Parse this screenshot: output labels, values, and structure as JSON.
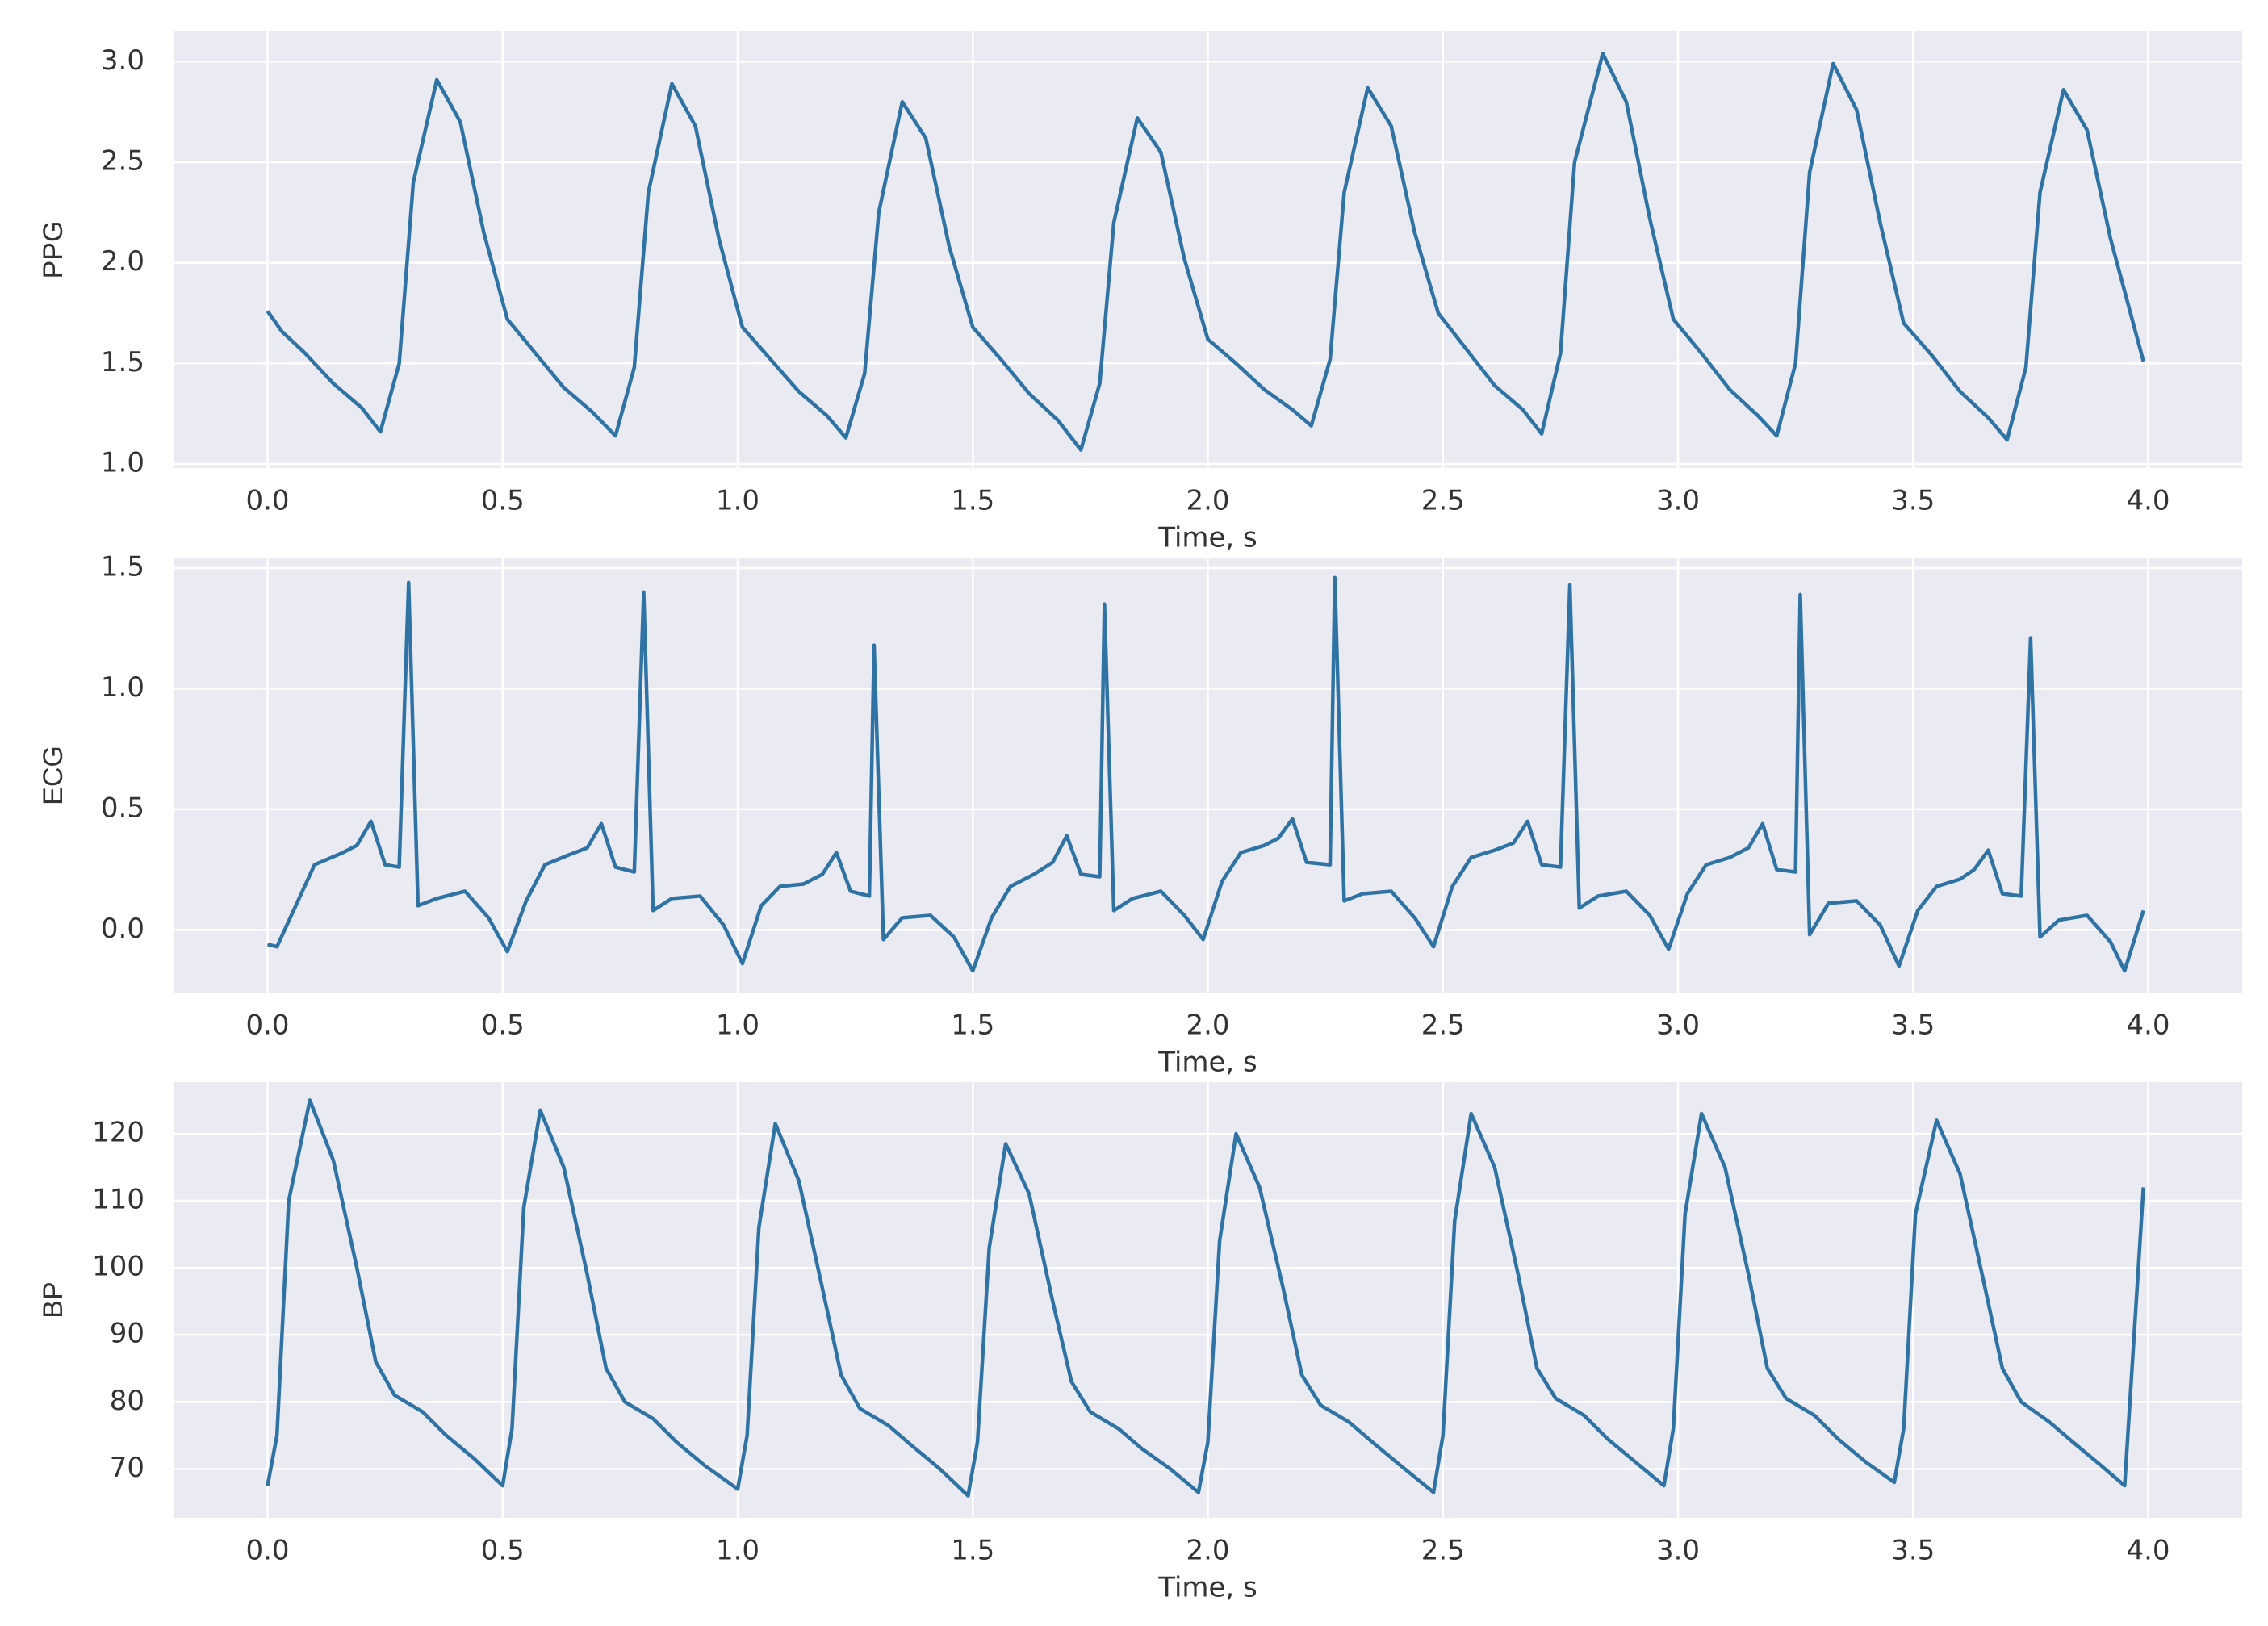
{
  "chart_data": [
    {
      "type": "line",
      "ylabel": "PPG",
      "xlabel": "Time, s",
      "color": "#2f73a5",
      "grid": true,
      "xlim": [
        -0.2,
        4.2
      ],
      "ylim": [
        0.98,
        3.15
      ],
      "xticks": [
        {
          "value": 0,
          "label": "0.0"
        },
        0.5,
        {
          "value": 1,
          "label": "1.0"
        },
        1.5,
        {
          "value": 2,
          "label": "2.0"
        },
        2.5,
        {
          "value": 3,
          "label": "3.0"
        },
        3.5,
        {
          "value": 4,
          "label": "4.0"
        }
      ],
      "yticks": [
        {
          "value": 1,
          "label": "1.0"
        },
        1.5,
        {
          "value": 2,
          "label": "2.0"
        },
        2.5,
        {
          "value": 3,
          "label": "3.0"
        }
      ],
      "x": [
        0.0,
        0.03,
        0.08,
        0.14,
        0.2,
        0.24,
        0.28,
        0.31,
        0.36,
        0.41,
        0.46,
        0.51,
        0.57,
        0.63,
        0.69,
        0.74,
        0.78,
        0.81,
        0.86,
        0.91,
        0.96,
        1.01,
        1.07,
        1.13,
        1.19,
        1.23,
        1.27,
        1.3,
        1.35,
        1.4,
        1.45,
        1.5,
        1.56,
        1.62,
        1.68,
        1.73,
        1.77,
        1.8,
        1.85,
        1.9,
        1.95,
        2.0,
        2.06,
        2.12,
        2.18,
        2.22,
        2.26,
        2.29,
        2.34,
        2.39,
        2.44,
        2.49,
        2.55,
        2.61,
        2.67,
        2.71,
        2.75,
        2.78,
        2.84,
        2.89,
        2.94,
        2.99,
        3.05,
        3.11,
        3.17,
        3.21,
        3.25,
        3.28,
        3.33,
        3.38,
        3.43,
        3.48,
        3.54,
        3.6,
        3.66,
        3.7,
        3.74,
        3.77,
        3.82,
        3.87,
        3.92,
        3.99
      ],
      "values": [
        1.76,
        1.66,
        1.55,
        1.4,
        1.28,
        1.16,
        1.5,
        2.4,
        2.91,
        2.7,
        2.15,
        1.72,
        1.55,
        1.38,
        1.26,
        1.14,
        1.48,
        2.35,
        2.89,
        2.68,
        2.12,
        1.68,
        1.52,
        1.36,
        1.24,
        1.13,
        1.45,
        2.25,
        2.8,
        2.62,
        2.08,
        1.68,
        1.52,
        1.35,
        1.22,
        1.07,
        1.4,
        2.2,
        2.72,
        2.55,
        2.02,
        1.62,
        1.5,
        1.37,
        1.27,
        1.19,
        1.52,
        2.35,
        2.87,
        2.68,
        2.15,
        1.75,
        1.57,
        1.39,
        1.27,
        1.15,
        1.55,
        2.5,
        3.04,
        2.8,
        2.22,
        1.72,
        1.55,
        1.37,
        1.24,
        1.14,
        1.5,
        2.45,
        2.99,
        2.76,
        2.2,
        1.7,
        1.54,
        1.36,
        1.23,
        1.12,
        1.48,
        2.35,
        2.86,
        2.66,
        2.12,
        1.51
      ]
    },
    {
      "type": "line",
      "ylabel": "ECG",
      "xlabel": "Time, s",
      "color": "#2f73a5",
      "grid": true,
      "xlim": [
        -0.2,
        4.2
      ],
      "ylim": [
        -0.26,
        1.54
      ],
      "xticks": [
        {
          "value": 0,
          "label": "0.0"
        },
        0.5,
        {
          "value": 1,
          "label": "1.0"
        },
        1.5,
        {
          "value": 2,
          "label": "2.0"
        },
        2.5,
        {
          "value": 3,
          "label": "3.0"
        },
        3.5,
        {
          "value": 4,
          "label": "4.0"
        }
      ],
      "yticks": [
        {
          "value": 0,
          "label": "0.0"
        },
        0.5,
        {
          "value": 1,
          "label": "1.0"
        },
        1.5
      ],
      "x": [
        0.0,
        0.02,
        0.06,
        0.1,
        0.16,
        0.19,
        0.22,
        0.25,
        0.28,
        0.3,
        0.32,
        0.36,
        0.42,
        0.47,
        0.51,
        0.55,
        0.59,
        0.64,
        0.68,
        0.71,
        0.74,
        0.78,
        0.8,
        0.82,
        0.86,
        0.92,
        0.97,
        1.01,
        1.05,
        1.09,
        1.14,
        1.18,
        1.21,
        1.24,
        1.28,
        1.29,
        1.31,
        1.35,
        1.41,
        1.46,
        1.5,
        1.54,
        1.58,
        1.63,
        1.67,
        1.7,
        1.73,
        1.77,
        1.78,
        1.8,
        1.84,
        1.9,
        1.95,
        1.99,
        2.03,
        2.07,
        2.12,
        2.15,
        2.18,
        2.21,
        2.26,
        2.27,
        2.29,
        2.33,
        2.39,
        2.44,
        2.48,
        2.52,
        2.56,
        2.61,
        2.65,
        2.68,
        2.71,
        2.75,
        2.77,
        2.79,
        2.83,
        2.89,
        2.94,
        2.98,
        3.02,
        3.06,
        3.11,
        3.15,
        3.18,
        3.21,
        3.25,
        3.26,
        3.28,
        3.32,
        3.38,
        3.43,
        3.47,
        3.51,
        3.55,
        3.6,
        3.63,
        3.66,
        3.69,
        3.73,
        3.75,
        3.77,
        3.81,
        3.87,
        3.92,
        3.95,
        3.99
      ],
      "values": [
        -0.06,
        -0.07,
        0.1,
        0.27,
        0.32,
        0.35,
        0.45,
        0.27,
        0.26,
        1.44,
        0.1,
        0.13,
        0.16,
        0.05,
        -0.09,
        0.12,
        0.27,
        0.31,
        0.34,
        0.44,
        0.26,
        0.24,
        1.4,
        0.08,
        0.13,
        0.14,
        0.02,
        -0.14,
        0.1,
        0.18,
        0.19,
        0.23,
        0.32,
        0.16,
        0.14,
        1.18,
        -0.04,
        0.05,
        0.06,
        -0.03,
        -0.17,
        0.05,
        0.18,
        0.23,
        0.28,
        0.39,
        0.23,
        0.22,
        1.35,
        0.08,
        0.13,
        0.16,
        0.06,
        -0.04,
        0.2,
        0.32,
        0.35,
        0.38,
        0.46,
        0.28,
        0.27,
        1.46,
        0.12,
        0.15,
        0.16,
        0.05,
        -0.07,
        0.18,
        0.3,
        0.33,
        0.36,
        0.45,
        0.27,
        0.26,
        1.43,
        0.09,
        0.14,
        0.16,
        0.06,
        -0.08,
        0.15,
        0.27,
        0.3,
        0.34,
        0.44,
        0.25,
        0.24,
        1.39,
        -0.02,
        0.11,
        0.12,
        0.02,
        -0.15,
        0.08,
        0.18,
        0.21,
        0.25,
        0.33,
        0.15,
        0.14,
        1.21,
        -0.03,
        0.04,
        0.06,
        -0.05,
        -0.17,
        0.08
      ]
    },
    {
      "type": "line",
      "ylabel": "BP",
      "xlabel": "Time, s",
      "color": "#2f73a5",
      "grid": true,
      "xlim": [
        -0.2,
        4.2
      ],
      "ylim": [
        62.7,
        127.7
      ],
      "xticks": [
        {
          "value": 0,
          "label": "0.0"
        },
        0.5,
        {
          "value": 1,
          "label": "1.0"
        },
        1.5,
        {
          "value": 2,
          "label": "2.0"
        },
        2.5,
        {
          "value": 3,
          "label": "3.0"
        },
        3.5,
        {
          "value": 4,
          "label": "4.0"
        }
      ],
      "yticks": [
        70,
        80,
        90,
        100,
        110,
        120
      ],
      "x": [
        0.0,
        0.02,
        0.045,
        0.09,
        0.14,
        0.19,
        0.23,
        0.27,
        0.33,
        0.38,
        0.44,
        0.5,
        0.52,
        0.545,
        0.58,
        0.63,
        0.68,
        0.72,
        0.76,
        0.82,
        0.87,
        0.93,
        1.0,
        1.02,
        1.045,
        1.08,
        1.13,
        1.18,
        1.22,
        1.26,
        1.32,
        1.37,
        1.43,
        1.49,
        1.51,
        1.535,
        1.57,
        1.62,
        1.67,
        1.71,
        1.75,
        1.81,
        1.86,
        1.92,
        1.98,
        2.0,
        2.025,
        2.06,
        2.11,
        2.16,
        2.2,
        2.24,
        2.3,
        2.35,
        2.41,
        2.48,
        2.5,
        2.525,
        2.56,
        2.61,
        2.66,
        2.7,
        2.74,
        2.8,
        2.85,
        2.91,
        2.97,
        2.99,
        3.015,
        3.05,
        3.1,
        3.15,
        3.19,
        3.23,
        3.29,
        3.34,
        3.4,
        3.46,
        3.48,
        3.505,
        3.55,
        3.6,
        3.65,
        3.69,
        3.73,
        3.79,
        3.84,
        3.9,
        3.95,
        3.99
      ],
      "values": [
        67.5,
        75,
        110,
        125,
        116,
        100,
        86,
        81,
        78.5,
        75,
        71.5,
        67.5,
        76,
        109,
        123.5,
        115,
        99,
        85,
        80,
        77.5,
        74,
        70.5,
        67,
        75,
        106,
        121.5,
        113,
        97,
        84,
        79,
        76.5,
        73.5,
        70,
        66,
        74,
        103,
        118.5,
        111,
        95,
        83,
        78.5,
        76,
        73,
        70,
        66.5,
        74,
        104,
        120,
        112,
        97,
        84,
        79.5,
        77,
        74,
        70.5,
        66.5,
        75,
        107,
        123,
        115,
        99,
        85,
        80.5,
        78,
        74.5,
        71,
        67.5,
        76,
        108,
        123,
        115,
        99,
        85,
        80.5,
        78,
        74.5,
        71,
        68,
        76,
        108,
        122,
        114,
        98,
        85,
        80,
        77,
        74,
        70.5,
        67.5,
        112
      ]
    }
  ]
}
